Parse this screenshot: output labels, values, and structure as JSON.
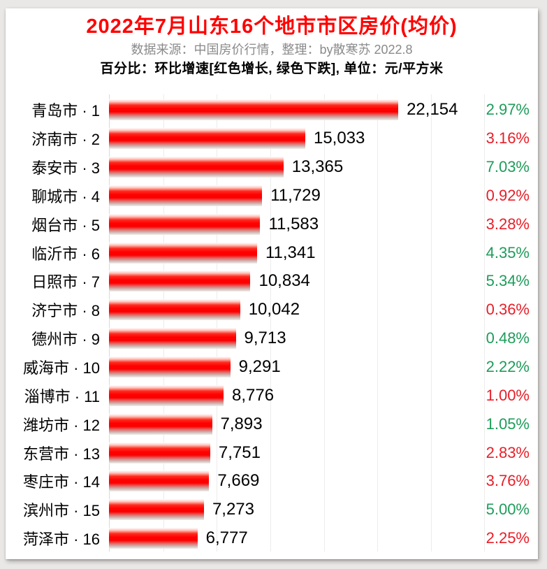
{
  "header": {
    "title": "2022年7月山东16个地市市区房价(均价)",
    "subtitle": "数据来源：中国房价行情，整理：by散寒苏 2022.8",
    "note": "百分比：环比增速[红色增长, 绿色下跌], 单位：元/平方米"
  },
  "colors": {
    "title_red": "#ff0000",
    "subtitle_gray": "#8a8a8a",
    "bar_red": "#ff0000",
    "increase_red": "#e81e28",
    "decrease_green": "#1e9c5a"
  },
  "chart_data": {
    "type": "bar",
    "orientation": "horizontal",
    "title": "2022年7月山东16个地市市区房价(均价)",
    "unit": "元/平方米",
    "legend_note": "百分比为环比增速，红色=增长，绿色=下跌",
    "grid": true,
    "xlim": [
      0,
      27500
    ],
    "categories": [
      "青岛市 · 1",
      "济南市 · 2",
      "泰安市 · 3",
      "聊城市 · 4",
      "烟台市 · 5",
      "临沂市 · 6",
      "日照市 · 7",
      "济宁市 · 8",
      "德州市 · 9",
      "威海市 · 10",
      "淄博市 · 11",
      "潍坊市 · 12",
      "东营市 · 13",
      "枣庄市 · 14",
      "滨州市 · 15",
      "菏泽市 · 16"
    ],
    "values": [
      22154,
      15033,
      13365,
      11729,
      11583,
      11341,
      10834,
      10042,
      9713,
      9291,
      8776,
      7893,
      7751,
      7669,
      7273,
      6777
    ],
    "rows": [
      {
        "city": "青岛市",
        "rank": 1,
        "label": "青岛市 · 1",
        "price": 22154,
        "price_label": "22,154",
        "pct": 2.97,
        "pct_label": "2.97%",
        "direction": "down"
      },
      {
        "city": "济南市",
        "rank": 2,
        "label": "济南市 · 2",
        "price": 15033,
        "price_label": "15,033",
        "pct": 3.16,
        "pct_label": "3.16%",
        "direction": "up"
      },
      {
        "city": "泰安市",
        "rank": 3,
        "label": "泰安市 · 3",
        "price": 13365,
        "price_label": "13,365",
        "pct": 7.03,
        "pct_label": "7.03%",
        "direction": "down"
      },
      {
        "city": "聊城市",
        "rank": 4,
        "label": "聊城市 · 4",
        "price": 11729,
        "price_label": "11,729",
        "pct": 0.92,
        "pct_label": "0.92%",
        "direction": "up"
      },
      {
        "city": "烟台市",
        "rank": 5,
        "label": "烟台市 · 5",
        "price": 11583,
        "price_label": "11,583",
        "pct": 3.28,
        "pct_label": "3.28%",
        "direction": "up"
      },
      {
        "city": "临沂市",
        "rank": 6,
        "label": "临沂市 · 6",
        "price": 11341,
        "price_label": "11,341",
        "pct": 4.35,
        "pct_label": "4.35%",
        "direction": "down"
      },
      {
        "city": "日照市",
        "rank": 7,
        "label": "日照市 · 7",
        "price": 10834,
        "price_label": "10,834",
        "pct": 5.34,
        "pct_label": "5.34%",
        "direction": "down"
      },
      {
        "city": "济宁市",
        "rank": 8,
        "label": "济宁市 · 8",
        "price": 10042,
        "price_label": "10,042",
        "pct": 0.36,
        "pct_label": "0.36%",
        "direction": "up"
      },
      {
        "city": "德州市",
        "rank": 9,
        "label": "德州市 · 9",
        "price": 9713,
        "price_label": "9,713",
        "pct": 0.48,
        "pct_label": "0.48%",
        "direction": "down"
      },
      {
        "city": "威海市",
        "rank": 10,
        "label": "威海市 · 10",
        "price": 9291,
        "price_label": "9,291",
        "pct": 2.22,
        "pct_label": "2.22%",
        "direction": "down"
      },
      {
        "city": "淄博市",
        "rank": 11,
        "label": "淄博市 · 11",
        "price": 8776,
        "price_label": "8,776",
        "pct": 1.0,
        "pct_label": "1.00%",
        "direction": "up"
      },
      {
        "city": "潍坊市",
        "rank": 12,
        "label": "潍坊市 · 12",
        "price": 7893,
        "price_label": "7,893",
        "pct": 1.05,
        "pct_label": "1.05%",
        "direction": "down"
      },
      {
        "city": "东营市",
        "rank": 13,
        "label": "东营市 · 13",
        "price": 7751,
        "price_label": "7,751",
        "pct": 2.83,
        "pct_label": "2.83%",
        "direction": "up"
      },
      {
        "city": "枣庄市",
        "rank": 14,
        "label": "枣庄市 · 14",
        "price": 7669,
        "price_label": "7,669",
        "pct": 3.76,
        "pct_label": "3.76%",
        "direction": "up"
      },
      {
        "city": "滨州市",
        "rank": 15,
        "label": "滨州市 · 15",
        "price": 7273,
        "price_label": "7,273",
        "pct": 5.0,
        "pct_label": "5.00%",
        "direction": "down"
      },
      {
        "city": "菏泽市",
        "rank": 16,
        "label": "菏泽市 · 16",
        "price": 6777,
        "price_label": "6,777",
        "pct": 2.25,
        "pct_label": "2.25%",
        "direction": "up"
      }
    ]
  }
}
